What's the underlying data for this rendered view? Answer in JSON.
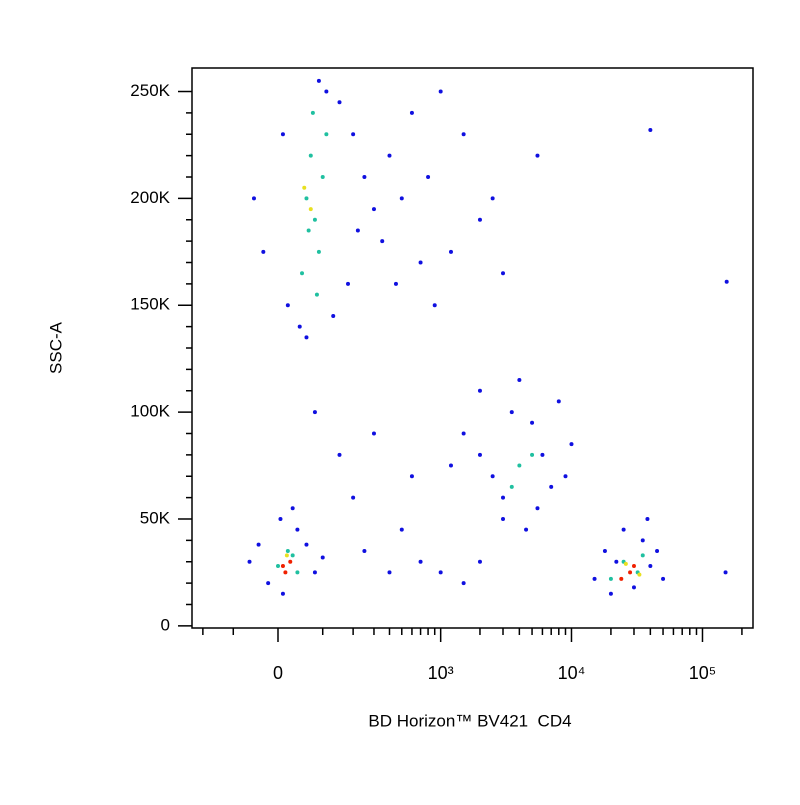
{
  "chart_data": {
    "type": "scatter",
    "xlabel": "BD Horizon™ BV421  CD4",
    "ylabel": "SSC-A",
    "xscale": "biexponential",
    "xscale_linear_width": 115,
    "xlim": [
      -248,
      243000
    ],
    "ylim": [
      -1000,
      261000
    ],
    "xticks": [
      0,
      {
        "value": 1000,
        "label": "10³"
      },
      {
        "value": 10000,
        "label": "10⁴"
      },
      {
        "value": 100000,
        "label": "10⁵"
      }
    ],
    "xminorticks": [
      -200,
      -100,
      100,
      200,
      300,
      400,
      500,
      600,
      700,
      800,
      900,
      2000,
      3000,
      4000,
      5000,
      6000,
      7000,
      8000,
      9000,
      20000,
      30000,
      40000,
      50000,
      60000,
      70000,
      80000,
      90000,
      200000
    ],
    "yticks": [
      0,
      {
        "value": 50000,
        "label": "50K"
      },
      {
        "value": 100000,
        "label": "100K"
      },
      {
        "value": 150000,
        "label": "150K"
      },
      {
        "value": 200000,
        "label": "200K"
      },
      {
        "value": 250000,
        "label": "250K"
      }
    ],
    "yminorticks": [
      10000,
      20000,
      30000,
      40000,
      60000,
      70000,
      80000,
      90000,
      110000,
      120000,
      130000,
      140000,
      160000,
      170000,
      180000,
      190000,
      210000,
      220000,
      230000,
      240000
    ],
    "series": [
      {
        "color": "#1010e0",
        "x": [
          20,
          45,
          -30,
          90,
          150,
          200,
          250,
          300,
          350,
          400,
          500,
          600,
          700,
          180,
          60,
          130,
          -50,
          10,
          110,
          220,
          450,
          800,
          1000,
          1500,
          2000,
          2500,
          900,
          1200,
          3000,
          5500,
          153000,
          40000,
          80,
          150,
          200,
          300,
          500,
          700,
          1000,
          400,
          250,
          1500,
          2000,
          600,
          -60,
          -20,
          10,
          40,
          60,
          80,
          -40,
          30,
          100,
          5,
          1500,
          2000,
          2500,
          3000,
          3500,
          4000,
          5000,
          6000,
          7000,
          8000,
          10000,
          3000,
          4500,
          5500,
          2000,
          1200,
          9000,
          15000,
          18000,
          20000,
          25000,
          30000,
          35000,
          40000,
          45000,
          50000,
          22000,
          38000,
          150000
        ],
        "values": [
          150000,
          140000,
          175000,
          255000,
          245000,
          230000,
          210000,
          195000,
          180000,
          220000,
          200000,
          240000,
          170000,
          160000,
          135000,
          145000,
          200000,
          230000,
          250000,
          185000,
          160000,
          210000,
          250000,
          230000,
          190000,
          200000,
          150000,
          175000,
          165000,
          220000,
          161000,
          232000,
          100000,
          80000,
          60000,
          90000,
          45000,
          30000,
          25000,
          25000,
          35000,
          20000,
          30000,
          70000,
          30000,
          20000,
          15000,
          45000,
          38000,
          25000,
          38000,
          55000,
          32000,
          50000,
          90000,
          110000,
          70000,
          60000,
          100000,
          115000,
          95000,
          80000,
          65000,
          105000,
          85000,
          50000,
          45000,
          55000,
          80000,
          75000,
          70000,
          22000,
          35000,
          15000,
          45000,
          18000,
          40000,
          28000,
          35000,
          22000,
          30000,
          50000,
          25000
        ]
      },
      {
        "color": "#20c0a0",
        "x": [
          60,
          80,
          70,
          90,
          50,
          100,
          75,
          65,
          85,
          110,
          20,
          0,
          40,
          30,
          4000,
          3500,
          5000,
          25000,
          32000,
          20000,
          35000
        ],
        "values": [
          200000,
          190000,
          220000,
          175000,
          165000,
          210000,
          240000,
          185000,
          155000,
          230000,
          35000,
          28000,
          25000,
          33000,
          75000,
          65000,
          80000,
          30000,
          25000,
          22000,
          33000
        ]
      },
      {
        "color": "#e8e020",
        "x": [
          70,
          55,
          18,
          26000,
          33000
        ],
        "values": [
          195000,
          205000,
          33000,
          29000,
          24000
        ]
      },
      {
        "color": "#f02000",
        "x": [
          10,
          25,
          15,
          28000,
          24000,
          30000
        ],
        "values": [
          28000,
          30000,
          25000,
          25000,
          22000,
          28000
        ]
      }
    ]
  }
}
